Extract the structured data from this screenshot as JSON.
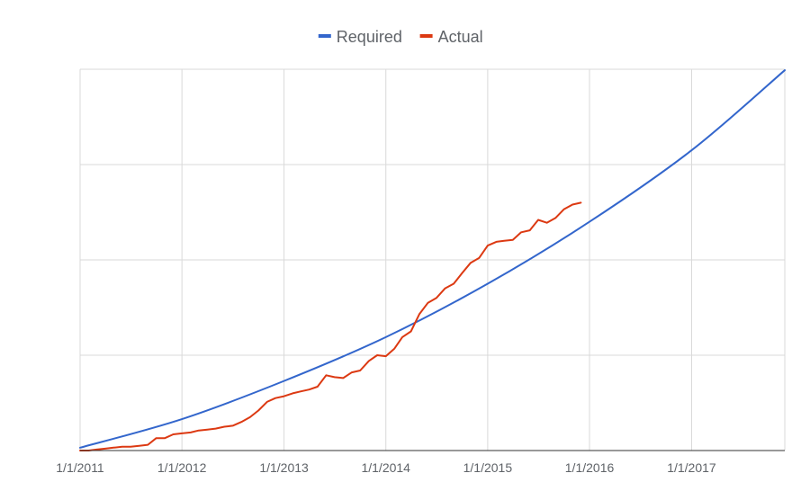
{
  "chart_data": {
    "type": "line",
    "title": "",
    "xlabel": "",
    "ylabel": "",
    "x_axis": {
      "type": "date",
      "min": "2011-01-01",
      "max": "2017-12-01",
      "ticks": [
        "2011-01-01",
        "2012-01-01",
        "2013-01-01",
        "2014-01-01",
        "2015-01-01",
        "2016-01-01",
        "2017-01-01"
      ],
      "tick_labels": [
        "1/1/2011",
        "1/1/2012",
        "1/1/2013",
        "1/1/2014",
        "1/1/2015",
        "1/1/2016",
        "1/1/2017"
      ]
    },
    "y_axis": {
      "min": 0,
      "max": 4,
      "gridlines": [
        0,
        1,
        2,
        3,
        4
      ],
      "tick_labels_shown": false
    },
    "grid": true,
    "legend": {
      "position": "top"
    },
    "series": [
      {
        "name": "Required",
        "color": "#3366cc",
        "points": [
          [
            "2011-01-01",
            0.03
          ],
          [
            "2012-01-01",
            0.33
          ],
          [
            "2013-01-01",
            0.73
          ],
          [
            "2014-01-01",
            1.19
          ],
          [
            "2015-01-01",
            1.75
          ],
          [
            "2016-01-01",
            2.4
          ],
          [
            "2017-01-01",
            3.15
          ],
          [
            "2017-12-01",
            3.99
          ]
        ]
      },
      {
        "name": "Actual",
        "color": "#dc3912",
        "points": [
          [
            "2011-01-01",
            0.0
          ],
          [
            "2011-02-01",
            0.0
          ],
          [
            "2011-03-01",
            0.01
          ],
          [
            "2011-04-01",
            0.02
          ],
          [
            "2011-05-01",
            0.03
          ],
          [
            "2011-06-01",
            0.04
          ],
          [
            "2011-07-01",
            0.04
          ],
          [
            "2011-08-01",
            0.05
          ],
          [
            "2011-09-01",
            0.06
          ],
          [
            "2011-10-01",
            0.13
          ],
          [
            "2011-11-01",
            0.13
          ],
          [
            "2011-12-01",
            0.17
          ],
          [
            "2012-01-01",
            0.18
          ],
          [
            "2012-02-01",
            0.19
          ],
          [
            "2012-03-01",
            0.21
          ],
          [
            "2012-04-01",
            0.22
          ],
          [
            "2012-05-01",
            0.23
          ],
          [
            "2012-06-01",
            0.25
          ],
          [
            "2012-07-01",
            0.26
          ],
          [
            "2012-08-01",
            0.3
          ],
          [
            "2012-09-01",
            0.35
          ],
          [
            "2012-10-01",
            0.42
          ],
          [
            "2012-11-01",
            0.51
          ],
          [
            "2012-12-01",
            0.55
          ],
          [
            "2013-01-01",
            0.57
          ],
          [
            "2013-02-01",
            0.6
          ],
          [
            "2013-03-01",
            0.62
          ],
          [
            "2013-04-01",
            0.64
          ],
          [
            "2013-05-01",
            0.67
          ],
          [
            "2013-06-01",
            0.79
          ],
          [
            "2013-07-01",
            0.77
          ],
          [
            "2013-08-01",
            0.76
          ],
          [
            "2013-09-01",
            0.82
          ],
          [
            "2013-10-01",
            0.84
          ],
          [
            "2013-11-01",
            0.94
          ],
          [
            "2013-12-01",
            1.0
          ],
          [
            "2014-01-01",
            0.99
          ],
          [
            "2014-02-01",
            1.07
          ],
          [
            "2014-03-01",
            1.19
          ],
          [
            "2014-04-01",
            1.25
          ],
          [
            "2014-05-01",
            1.43
          ],
          [
            "2014-06-01",
            1.55
          ],
          [
            "2014-07-01",
            1.6
          ],
          [
            "2014-08-01",
            1.7
          ],
          [
            "2014-09-01",
            1.75
          ],
          [
            "2014-10-01",
            1.86
          ],
          [
            "2014-11-01",
            1.97
          ],
          [
            "2014-12-01",
            2.02
          ],
          [
            "2015-01-01",
            2.15
          ],
          [
            "2015-02-01",
            2.19
          ],
          [
            "2015-03-01",
            2.2
          ],
          [
            "2015-04-01",
            2.21
          ],
          [
            "2015-05-01",
            2.29
          ],
          [
            "2015-06-01",
            2.31
          ],
          [
            "2015-07-01",
            2.42
          ],
          [
            "2015-08-01",
            2.39
          ],
          [
            "2015-09-01",
            2.44
          ],
          [
            "2015-10-01",
            2.53
          ],
          [
            "2015-11-01",
            2.58
          ],
          [
            "2015-12-01",
            2.6
          ]
        ]
      }
    ]
  }
}
